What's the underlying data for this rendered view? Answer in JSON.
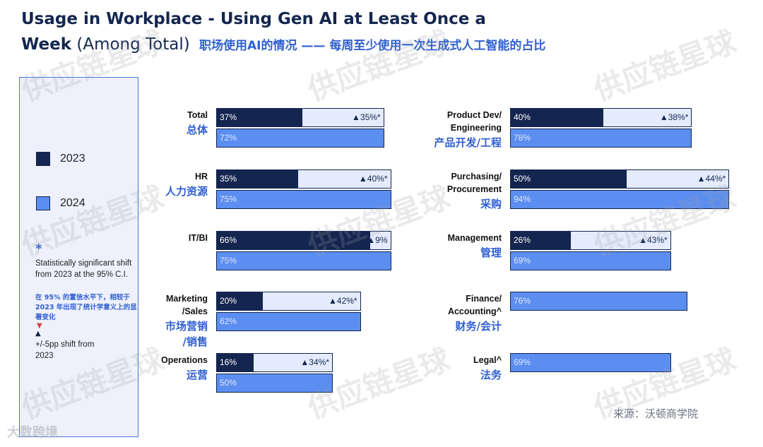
{
  "title": {
    "line1": "Usage in Workplace - Using Gen AI at Least Once a",
    "line2_bold": "Week",
    "line2_sub": " (Among Total)",
    "cn": "职场使用AI的情况 —— 每周至少使用一次生成式人工智能的占比"
  },
  "legend": {
    "label_2023": "2023",
    "label_2024": "2024",
    "star": "*",
    "sig_text": "Statistically significant shift from 2023 at the 95% C.I.",
    "sig_cn": "在 95% 的置信水平下，相较于 2023 年出现了统计学意义上的显著变化",
    "tri_red": "▼",
    "tri_blue": "▲",
    "shift_text": "+/-5pp shift from 2023"
  },
  "colors": {
    "color_2023": "#14264f",
    "color_2024": "#5b8ef0",
    "accent_cn": "#2f5fd0"
  },
  "chart_data": {
    "type": "bar",
    "orientation": "horizontal",
    "series": [
      {
        "name": "2023",
        "values": [
          37,
          35,
          66,
          20,
          16,
          40,
          50,
          26,
          null,
          null
        ]
      },
      {
        "name": "2024",
        "values": [
          72,
          75,
          75,
          62,
          50,
          78,
          94,
          69,
          76,
          69
        ]
      }
    ],
    "categories": [
      {
        "en": "Total",
        "cn": "总体",
        "v23": 37,
        "v24": 72,
        "l23": "37%",
        "l24": "72%",
        "delta": "▲35%*"
      },
      {
        "en": "HR",
        "cn": "人力资源",
        "v23": 35,
        "v24": 75,
        "l23": "35%",
        "l24": "75%",
        "delta": "▲40%*"
      },
      {
        "en": "IT/BI",
        "cn": "",
        "v23": 66,
        "v24": 75,
        "l23": "66%",
        "l24": "75%",
        "delta": "▲9%"
      },
      {
        "en": "Marketing\n/Sales",
        "cn": "市场营销\n/销售",
        "v23": 20,
        "v24": 62,
        "l23": "20%",
        "l24": "62%",
        "delta": "▲42%*"
      },
      {
        "en": "Operations",
        "cn": "运营",
        "v23": 16,
        "v24": 50,
        "l23": "16%",
        "l24": "50%",
        "delta": "▲34%*"
      },
      {
        "en": "Product Dev/\nEngineering",
        "cn": "产品开发/工程",
        "v23": 40,
        "v24": 78,
        "l23": "40%",
        "l24": "78%",
        "delta": "▲38%*"
      },
      {
        "en": "Purchasing/\nProcurement",
        "cn": "采购",
        "v23": 50,
        "v24": 94,
        "l23": "50%",
        "l24": "94%",
        "delta": "▲44%*"
      },
      {
        "en": "Management",
        "cn": "管理",
        "v23": 26,
        "v24": 69,
        "l23": "26%",
        "l24": "69%",
        "delta": "▲43%*"
      },
      {
        "en": "Finance/\nAccounting^",
        "cn": "财务/会计",
        "v23": null,
        "v24": 76,
        "l23": "",
        "l24": "76%",
        "delta": ""
      },
      {
        "en": "Legal^",
        "cn": "法务",
        "v23": null,
        "v24": 69,
        "l23": "",
        "l24": "69%",
        "delta": ""
      }
    ]
  },
  "watermark": "供应链星球",
  "source": "来源：沃顿商学院",
  "brand": "大数跨境"
}
